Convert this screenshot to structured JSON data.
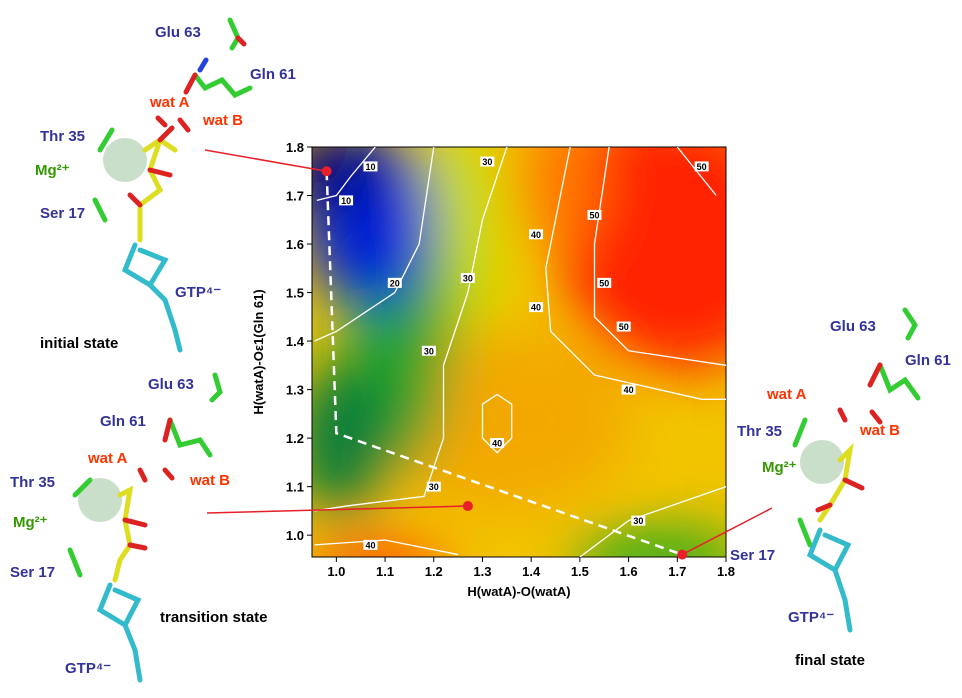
{
  "chart_data": {
    "type": "contour",
    "xlabel": "H(watA)-O(watA)",
    "ylabel": "H(watA)-Oε1(Gln 61)",
    "xlim": [
      0.95,
      1.8
    ],
    "ylim": [
      0.955,
      1.8
    ],
    "xticks": [
      {
        "value": 1.0,
        "label": "1.0"
      },
      1.1,
      1.2,
      1.3,
      1.4,
      1.5,
      1.6,
      1.7,
      1.8
    ],
    "yticks": [
      {
        "value": 1.0,
        "label": "1.0"
      },
      1.1,
      1.2,
      1.3,
      1.4,
      1.5,
      1.6,
      1.7,
      1.8
    ],
    "contours": [
      {
        "level": 10,
        "x": [
          1.08,
          1.03,
          1.0,
          0.96
        ],
        "y": [
          1.8,
          1.74,
          1.7,
          1.69
        ]
      },
      {
        "level": 20,
        "x": [
          1.2,
          1.17,
          1.12,
          1.0,
          0.955
        ],
        "y": [
          1.8,
          1.6,
          1.5,
          1.42,
          1.4
        ]
      },
      {
        "level": 30,
        "x": [
          1.35,
          1.3,
          1.27,
          1.22,
          1.22,
          1.18,
          1.02,
          0.955
        ],
        "y": [
          1.8,
          1.65,
          1.5,
          1.35,
          1.2,
          1.08,
          1.06,
          1.05
        ]
      },
      {
        "level": 40,
        "x": [
          1.48,
          1.45,
          1.43,
          1.44,
          1.53,
          1.75,
          1.8
        ],
        "y": [
          1.8,
          1.65,
          1.55,
          1.42,
          1.33,
          1.28,
          1.28
        ]
      },
      {
        "level": 40,
        "x": [
          1.33,
          1.36,
          1.36,
          1.33,
          1.3,
          1.3,
          1.33
        ],
        "y": [
          1.29,
          1.27,
          1.2,
          1.17,
          1.2,
          1.27,
          1.29
        ]
      },
      {
        "level": 40,
        "x": [
          0.955,
          1.1,
          1.25
        ],
        "y": [
          0.98,
          0.99,
          0.96
        ]
      },
      {
        "level": 50,
        "x": [
          1.56,
          1.53,
          1.53,
          1.6,
          1.8
        ],
        "y": [
          1.8,
          1.6,
          1.45,
          1.38,
          1.35
        ]
      },
      {
        "level": 50,
        "x": [
          1.7,
          1.78
        ],
        "y": [
          1.8,
          1.7
        ]
      },
      {
        "level": 30,
        "x": [
          1.5,
          1.6,
          1.8
        ],
        "y": [
          0.955,
          1.03,
          1.1
        ]
      }
    ],
    "contour_labels": [
      {
        "x": 1.07,
        "y": 1.76,
        "value": 10
      },
      {
        "x": 1.02,
        "y": 1.69,
        "value": 10
      },
      {
        "x": 1.12,
        "y": 1.52,
        "value": 20
      },
      {
        "x": 1.31,
        "y": 1.77,
        "value": 30
      },
      {
        "x": 1.27,
        "y": 1.53,
        "value": 30
      },
      {
        "x": 1.19,
        "y": 1.38,
        "value": 30
      },
      {
        "x": 1.2,
        "y": 1.1,
        "value": 30
      },
      {
        "x": 1.41,
        "y": 1.62,
        "value": 40
      },
      {
        "x": 1.41,
        "y": 1.47,
        "value": 40
      },
      {
        "x": 1.6,
        "y": 1.3,
        "value": 40
      },
      {
        "x": 1.33,
        "y": 1.19,
        "value": 40
      },
      {
        "x": 1.07,
        "y": 0.98,
        "value": 40
      },
      {
        "x": 1.53,
        "y": 1.66,
        "value": 50
      },
      {
        "x": 1.55,
        "y": 1.52,
        "value": 50
      },
      {
        "x": 1.59,
        "y": 1.43,
        "value": 50
      },
      {
        "x": 1.75,
        "y": 1.76,
        "value": 50
      },
      {
        "x": 1.62,
        "y": 1.03,
        "value": 30
      }
    ],
    "path": {
      "x": [
        0.98,
        1.0,
        1.71
      ],
      "y": [
        1.75,
        1.21,
        0.96
      ]
    },
    "points": {
      "x": [
        0.98,
        1.27,
        1.71
      ],
      "y": [
        1.75,
        1.06,
        0.96
      ],
      "color": "#e8202a"
    }
  },
  "structures": [
    {
      "labels": [
        "Glu 63",
        "Gln 61",
        "wat A",
        "wat B",
        "Thr 35",
        "Mg²⁺",
        "Ser 17",
        "GTP⁴⁻",
        "initial state"
      ]
    },
    {
      "labels": [
        "Glu 63",
        "Gln 61",
        "wat A",
        "wat B",
        "Thr 35",
        "Mg²⁺",
        "Ser 17",
        "GTP⁴⁻",
        "transition state"
      ]
    },
    {
      "labels": [
        "Glu 63",
        "Gln 61",
        "wat A",
        "wat B",
        "Thr 35",
        "Mg²⁺",
        "Ser 17",
        "GTP⁴⁻",
        "final state"
      ]
    }
  ]
}
